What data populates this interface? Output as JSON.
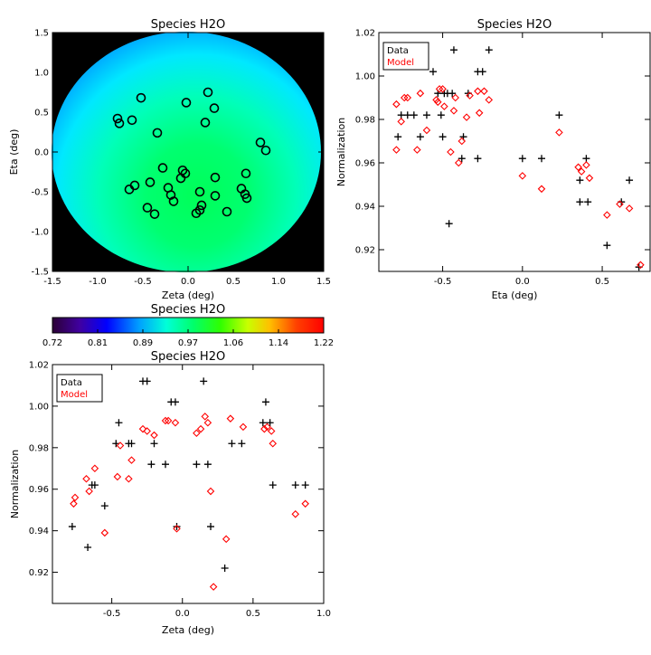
{
  "chart_data": [
    {
      "type": "heatmap",
      "title": "Species H2O",
      "xlabel": "Zeta (deg)",
      "ylabel": "Eta (deg)",
      "xlim": [
        -1.5,
        1.5
      ],
      "ylim": [
        -1.5,
        1.5
      ],
      "xticks": [
        "-1.5",
        "-1.0",
        "-0.5",
        "0.0",
        "0.5",
        "1.0",
        "1.5"
      ],
      "yticks": [
        "-1.5",
        "-1.0",
        "-0.5",
        "0.0",
        "0.5",
        "1.0",
        "1.5"
      ],
      "points": [
        [
          -0.52,
          0.68
        ],
        [
          -0.78,
          0.42
        ],
        [
          -0.76,
          0.36
        ],
        [
          -0.62,
          0.4
        ],
        [
          -0.02,
          0.62
        ],
        [
          0.22,
          0.75
        ],
        [
          0.29,
          0.55
        ],
        [
          0.19,
          0.37
        ],
        [
          -0.34,
          0.24
        ],
        [
          0.8,
          0.12
        ],
        [
          0.86,
          0.02
        ],
        [
          -0.28,
          -0.2
        ],
        [
          -0.06,
          -0.23
        ],
        [
          -0.03,
          -0.27
        ],
        [
          -0.08,
          -0.33
        ],
        [
          0.3,
          -0.32
        ],
        [
          0.64,
          -0.27
        ],
        [
          -0.42,
          -0.38
        ],
        [
          -0.59,
          -0.42
        ],
        [
          -0.65,
          -0.47
        ],
        [
          -0.22,
          -0.45
        ],
        [
          -0.19,
          -0.54
        ],
        [
          -0.16,
          -0.62
        ],
        [
          0.13,
          -0.5
        ],
        [
          0.3,
          -0.55
        ],
        [
          0.59,
          -0.46
        ],
        [
          0.63,
          -0.53
        ],
        [
          0.65,
          -0.58
        ],
        [
          -0.45,
          -0.7
        ],
        [
          -0.37,
          -0.78
        ],
        [
          0.15,
          -0.67
        ],
        [
          0.13,
          -0.73
        ],
        [
          0.09,
          -0.77
        ],
        [
          0.43,
          -0.75
        ]
      ],
      "background_color": "#000000"
    },
    {
      "type": "scatter",
      "title": "Species H2O",
      "xlabel": "Eta (deg)",
      "ylabel": "Normalization",
      "xlim": [
        -0.9,
        0.8
      ],
      "ylim": [
        0.91,
        1.02
      ],
      "xticks": [
        "-0.5",
        "0.0",
        "0.5"
      ],
      "yticks": [
        "0.92",
        "0.94",
        "0.96",
        "0.98",
        "1.00",
        "1.02"
      ],
      "legend": [
        "Data",
        "Model"
      ],
      "series": [
        {
          "name": "Data",
          "marker": "plus",
          "color": "#000000",
          "points": [
            [
              -0.78,
              0.972
            ],
            [
              -0.76,
              0.982
            ],
            [
              -0.72,
              0.982
            ],
            [
              -0.68,
              0.982
            ],
            [
              -0.64,
              0.972
            ],
            [
              -0.6,
              0.982
            ],
            [
              -0.56,
              1.002
            ],
            [
              -0.53,
              0.992
            ],
            [
              -0.51,
              0.982
            ],
            [
              -0.5,
              0.972
            ],
            [
              -0.49,
              0.992
            ],
            [
              -0.47,
              0.992
            ],
            [
              -0.46,
              0.932
            ],
            [
              -0.44,
              0.992
            ],
            [
              -0.43,
              1.012
            ],
            [
              -0.38,
              0.962
            ],
            [
              -0.37,
              0.972
            ],
            [
              -0.34,
              0.992
            ],
            [
              -0.28,
              1.002
            ],
            [
              -0.25,
              1.002
            ],
            [
              -0.21,
              1.012
            ],
            [
              -0.28,
              0.962
            ],
            [
              0.0,
              0.962
            ],
            [
              0.12,
              0.962
            ],
            [
              0.23,
              0.982
            ],
            [
              0.36,
              0.952
            ],
            [
              0.36,
              0.942
            ],
            [
              0.4,
              0.962
            ],
            [
              0.41,
              0.942
            ],
            [
              0.53,
              0.922
            ],
            [
              0.62,
              0.942
            ],
            [
              0.67,
              0.952
            ],
            [
              0.73,
              0.912
            ]
          ]
        },
        {
          "name": "Model",
          "marker": "diamond",
          "color": "#ff0000",
          "points": [
            [
              -0.79,
              0.987
            ],
            [
              -0.79,
              0.966
            ],
            [
              -0.76,
              0.979
            ],
            [
              -0.74,
              0.99
            ],
            [
              -0.72,
              0.99
            ],
            [
              -0.66,
              0.966
            ],
            [
              -0.64,
              0.992
            ],
            [
              -0.6,
              0.975
            ],
            [
              -0.54,
              0.989
            ],
            [
              -0.53,
              0.988
            ],
            [
              -0.52,
              0.994
            ],
            [
              -0.5,
              0.994
            ],
            [
              -0.49,
              0.986
            ],
            [
              -0.45,
              0.965
            ],
            [
              -0.43,
              0.984
            ],
            [
              -0.42,
              0.99
            ],
            [
              -0.4,
              0.96
            ],
            [
              -0.38,
              0.97
            ],
            [
              -0.35,
              0.981
            ],
            [
              -0.33,
              0.991
            ],
            [
              -0.28,
              0.993
            ],
            [
              -0.27,
              0.983
            ],
            [
              -0.24,
              0.993
            ],
            [
              -0.21,
              0.989
            ],
            [
              0.0,
              0.954
            ],
            [
              0.12,
              0.948
            ],
            [
              0.23,
              0.974
            ],
            [
              0.35,
              0.958
            ],
            [
              0.37,
              0.956
            ],
            [
              0.4,
              0.959
            ],
            [
              0.42,
              0.953
            ],
            [
              0.53,
              0.936
            ],
            [
              0.61,
              0.941
            ],
            [
              0.67,
              0.939
            ],
            [
              0.74,
              0.913
            ]
          ]
        }
      ]
    },
    {
      "type": "scatter",
      "title": "Species H2O",
      "xlabel": "Zeta (deg)",
      "ylabel": "Normalization",
      "xlim": [
        -0.92,
        1.0
      ],
      "ylim": [
        0.905,
        1.02
      ],
      "xticks": [
        "-0.5",
        "0.0",
        "0.5",
        "1.0"
      ],
      "yticks": [
        "0.92",
        "0.94",
        "0.96",
        "0.98",
        "1.00",
        "1.02"
      ],
      "legend": [
        "Data",
        "Model"
      ],
      "series": [
        {
          "name": "Data",
          "marker": "plus",
          "color": "#000000",
          "points": [
            [
              -0.78,
              0.942
            ],
            [
              -0.67,
              0.932
            ],
            [
              -0.64,
              0.962
            ],
            [
              -0.62,
              0.962
            ],
            [
              -0.55,
              0.952
            ],
            [
              -0.47,
              0.982
            ],
            [
              -0.45,
              0.992
            ],
            [
              -0.38,
              0.982
            ],
            [
              -0.36,
              0.982
            ],
            [
              -0.28,
              1.012
            ],
            [
              -0.25,
              1.012
            ],
            [
              -0.22,
              0.972
            ],
            [
              -0.2,
              0.982
            ],
            [
              -0.12,
              0.972
            ],
            [
              -0.08,
              1.002
            ],
            [
              -0.05,
              1.002
            ],
            [
              -0.04,
              0.942
            ],
            [
              0.1,
              0.972
            ],
            [
              0.15,
              1.012
            ],
            [
              0.18,
              0.972
            ],
            [
              0.2,
              0.942
            ],
            [
              0.3,
              0.922
            ],
            [
              0.35,
              0.982
            ],
            [
              0.42,
              0.982
            ],
            [
              0.57,
              0.992
            ],
            [
              0.59,
              1.002
            ],
            [
              0.62,
              0.992
            ],
            [
              0.64,
              0.962
            ],
            [
              0.8,
              0.962
            ],
            [
              0.87,
              0.962
            ]
          ]
        },
        {
          "name": "Model",
          "marker": "diamond",
          "color": "#ff0000",
          "points": [
            [
              -0.77,
              0.953
            ],
            [
              -0.76,
              0.956
            ],
            [
              -0.68,
              0.965
            ],
            [
              -0.66,
              0.959
            ],
            [
              -0.62,
              0.97
            ],
            [
              -0.55,
              0.939
            ],
            [
              -0.46,
              0.966
            ],
            [
              -0.44,
              0.981
            ],
            [
              -0.38,
              0.965
            ],
            [
              -0.36,
              0.974
            ],
            [
              -0.28,
              0.989
            ],
            [
              -0.25,
              0.988
            ],
            [
              -0.2,
              0.986
            ],
            [
              -0.12,
              0.993
            ],
            [
              -0.1,
              0.993
            ],
            [
              -0.05,
              0.992
            ],
            [
              -0.04,
              0.941
            ],
            [
              0.1,
              0.987
            ],
            [
              0.13,
              0.989
            ],
            [
              0.16,
              0.995
            ],
            [
              0.18,
              0.992
            ],
            [
              0.2,
              0.959
            ],
            [
              0.22,
              0.913
            ],
            [
              0.31,
              0.936
            ],
            [
              0.34,
              0.994
            ],
            [
              0.43,
              0.99
            ],
            [
              0.58,
              0.989
            ],
            [
              0.6,
              0.99
            ],
            [
              0.63,
              0.988
            ],
            [
              0.64,
              0.982
            ],
            [
              0.8,
              0.948
            ],
            [
              0.87,
              0.953
            ]
          ]
        }
      ]
    },
    {
      "type": "colorbar",
      "title": "Species H2O",
      "range": [
        0.72,
        1.22
      ],
      "ticks": [
        "0.72",
        "0.81",
        "0.89",
        "0.97",
        "1.06",
        "1.14",
        "1.22"
      ]
    }
  ]
}
